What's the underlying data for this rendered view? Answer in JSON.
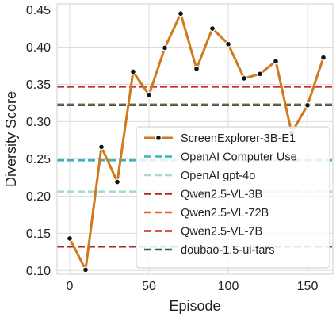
{
  "chart_data": {
    "type": "line",
    "title": "",
    "xlabel": "Episode",
    "ylabel": "Diversity Score",
    "xlim": [
      -8,
      166
    ],
    "ylim": [
      0.095,
      0.458
    ],
    "x_ticks": [
      0,
      50,
      100,
      150
    ],
    "y_ticks": [
      0.1,
      0.15,
      0.2,
      0.25,
      0.3,
      0.35,
      0.4,
      0.45
    ],
    "x_tick_labels": [
      "0",
      "50",
      "100",
      "150"
    ],
    "y_tick_labels": [
      "0.10",
      "0.15",
      "0.20",
      "0.25",
      "0.30",
      "0.35",
      "0.40",
      "0.45"
    ],
    "grid": true,
    "legend_position": "bottom-right",
    "series": [
      {
        "name": "ScreenExplorer-3B-E1",
        "style": "line-with-markers",
        "color": "#d07a1c",
        "marker_color": "#111111",
        "x": [
          0,
          10,
          20,
          30,
          40,
          50,
          60,
          70,
          80,
          90,
          100,
          110,
          120,
          130,
          140,
          150,
          160
        ],
        "y": [
          0.143,
          0.101,
          0.266,
          0.219,
          0.367,
          0.336,
          0.399,
          0.445,
          0.371,
          0.425,
          0.404,
          0.358,
          0.364,
          0.381,
          0.285,
          0.322,
          0.386
        ]
      }
    ],
    "baselines": [
      {
        "name": "OpenAI Computer Use",
        "value": 0.248,
        "color": "#3ab3be"
      },
      {
        "name": "OpenAI gpt-4o",
        "value": 0.206,
        "color": "#a6dccd"
      },
      {
        "name": "Qwen2.5-VL-3B",
        "value": 0.132,
        "color": "#a52a2a"
      },
      {
        "name": "Qwen2.5-VL-72B",
        "value": 0.323,
        "color": "#d9641f"
      },
      {
        "name": "Qwen2.5-VL-7B",
        "value": 0.347,
        "color": "#c0282d"
      },
      {
        "name": "doubao-1.5-ui-tars",
        "value": 0.322,
        "color": "#16676d"
      }
    ]
  }
}
